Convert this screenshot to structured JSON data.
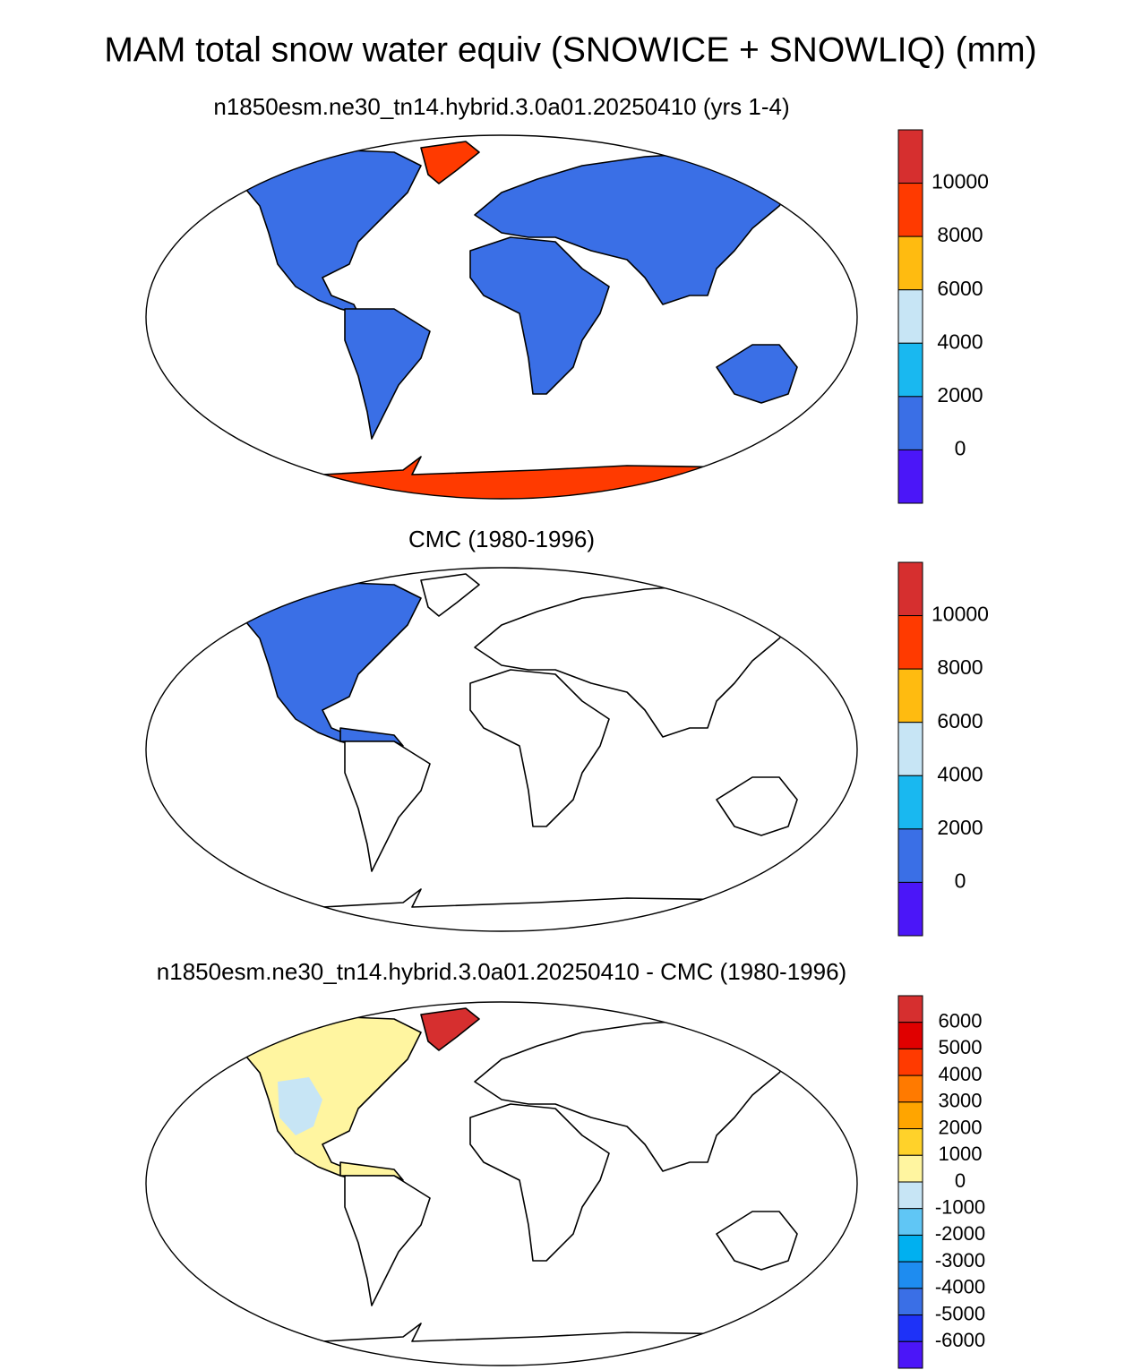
{
  "title": "MAM total snow water equiv (SNOWICE + SNOWLIQ) (mm)",
  "panels": [
    {
      "subtitle": "n1850esm.ne30_tn14.hybrid.3.0a01.20250410 (yrs 1-4)",
      "colorbar": {
        "colors": [
          "#d62f2f",
          "#ff3a00",
          "#ffbb10",
          "#c7e5f5",
          "#19b8f0",
          "#3a6fe6",
          "#4b16f8"
        ],
        "labels": [
          10000,
          8000,
          6000,
          4000,
          2000,
          0
        ]
      }
    },
    {
      "subtitle": "CMC (1980-1996)",
      "colorbar": {
        "colors": [
          "#d62f2f",
          "#ff3a00",
          "#ffbb10",
          "#c7e5f5",
          "#19b8f0",
          "#3a6fe6",
          "#4b16f8"
        ],
        "labels": [
          10000,
          8000,
          6000,
          4000,
          2000,
          0
        ]
      }
    },
    {
      "subtitle": "n1850esm.ne30_tn14.hybrid.3.0a01.20250410 - CMC (1980-1996)",
      "colorbar": {
        "colors": [
          "#d62f2f",
          "#e00000",
          "#ff3a00",
          "#ff7a00",
          "#ffa500",
          "#ffd22a",
          "#fff5a0",
          "#c7e5f5",
          "#60c6f5",
          "#00b0f0",
          "#1e8cf0",
          "#3a6fe6",
          "#1e32f8",
          "#4b16f8"
        ],
        "labels": [
          6000,
          5000,
          4000,
          3000,
          2000,
          1000,
          0,
          -1000,
          -2000,
          -3000,
          -4000,
          -5000,
          -6000
        ]
      }
    }
  ]
}
